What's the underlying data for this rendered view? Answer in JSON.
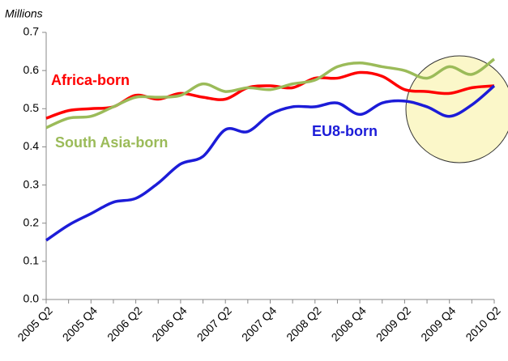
{
  "chart_data": {
    "type": "line",
    "y_axis_label": "Millions",
    "categories": [
      "2005 Q2",
      null,
      "2005 Q4",
      null,
      "2006 Q2",
      null,
      "2006 Q4",
      null,
      "2007 Q2",
      null,
      "2007 Q4",
      null,
      "2008 Q2",
      null,
      "2008 Q4",
      null,
      "2009 Q2",
      null,
      "2009 Q4",
      null,
      "2010 Q2"
    ],
    "series": [
      {
        "name": "Africa-born",
        "color": "#ff0000",
        "values": [
          0.475,
          0.495,
          0.5,
          0.505,
          0.535,
          0.525,
          0.54,
          0.53,
          0.525,
          0.555,
          0.56,
          0.555,
          0.58,
          0.58,
          0.595,
          0.585,
          0.55,
          0.545,
          0.54,
          0.555,
          0.56
        ]
      },
      {
        "name": "South Asia-born",
        "color": "#9bbb59",
        "values": [
          0.45,
          0.475,
          0.48,
          0.505,
          0.53,
          0.53,
          0.535,
          0.565,
          0.545,
          0.555,
          0.55,
          0.565,
          0.575,
          0.61,
          0.62,
          0.61,
          0.6,
          0.58,
          0.61,
          0.59,
          0.63
        ]
      },
      {
        "name": "EU8-born",
        "color": "#1c1cd8",
        "values": [
          0.155,
          0.195,
          0.225,
          0.255,
          0.265,
          0.305,
          0.355,
          0.375,
          0.445,
          0.44,
          0.485,
          0.505,
          0.505,
          0.515,
          0.485,
          0.515,
          0.52,
          0.505,
          0.48,
          0.51,
          0.56
        ]
      }
    ],
    "ylim": [
      0,
      0.7
    ],
    "yticks": [
      {
        "value": 0,
        "label": "0.0"
      },
      0.1,
      0.2,
      0.3,
      0.4,
      0.5,
      0.6,
      0.7
    ],
    "grid": false
  }
}
